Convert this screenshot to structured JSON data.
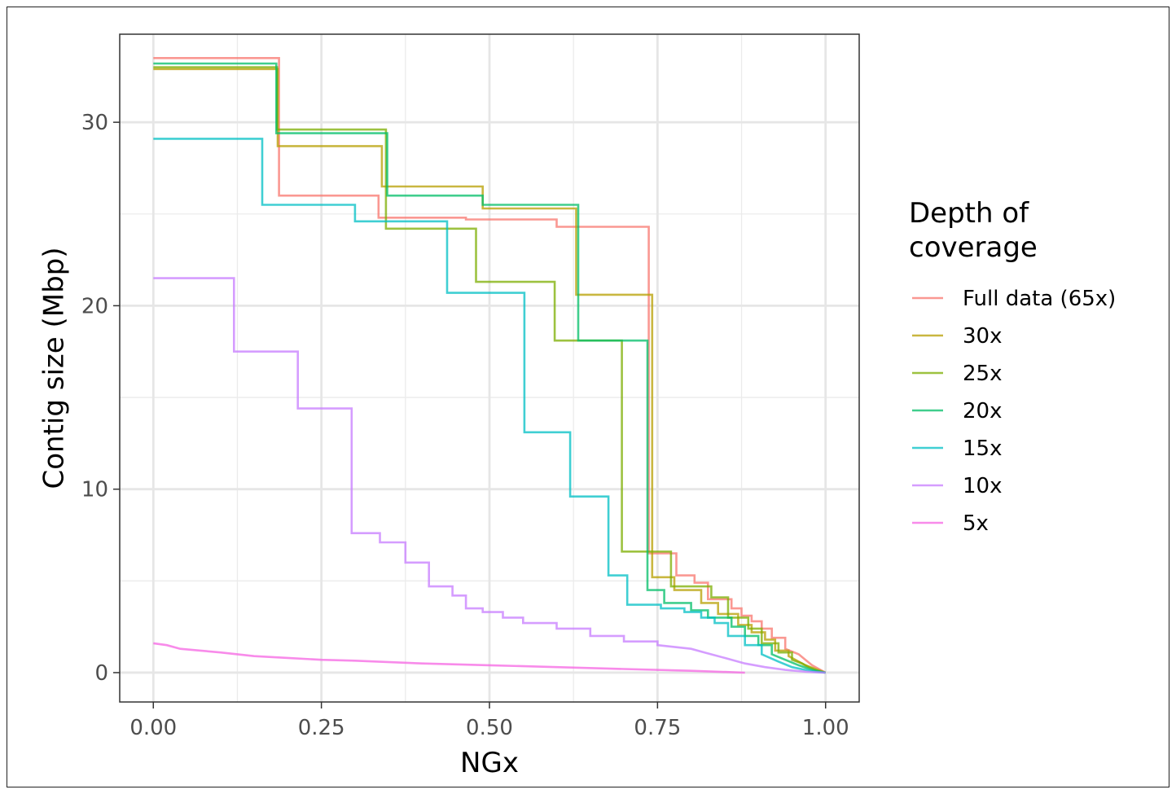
{
  "chart_data": {
    "type": "line",
    "step": true,
    "xlabel": "NGx",
    "ylabel": "Contig size (Mbp)",
    "xlim": [
      -0.05,
      1.05
    ],
    "ylim": [
      -1.6,
      34.8
    ],
    "x_ticks": [
      0.0,
      0.25,
      0.5,
      0.75,
      1.0
    ],
    "x_tick_labels": [
      "0.00",
      "0.25",
      "0.50",
      "0.75",
      "1.00"
    ],
    "y_ticks": [
      0,
      10,
      20,
      30
    ],
    "y_tick_labels": [
      "0",
      "10",
      "20",
      "30"
    ],
    "grid": true,
    "legend": {
      "title": "Depth of coverage",
      "title_lines": [
        "Depth of",
        "coverage"
      ],
      "position": "right"
    },
    "series": [
      {
        "name": "Full data (65x)",
        "color": "#F8766D",
        "x": [
          0,
          0.187,
          0.187,
          0.335,
          0.335,
          0.465,
          0.465,
          0.6,
          0.6,
          0.737,
          0.737,
          0.778,
          0.778,
          0.805,
          0.805,
          0.825,
          0.825,
          0.86,
          0.86,
          0.875,
          0.875,
          0.89,
          0.89,
          0.905,
          0.905,
          0.92,
          0.92,
          0.94,
          0.94,
          0.96,
          0.97,
          0.98,
          0.99,
          1.0
        ],
        "y": [
          33.5,
          33.5,
          26.0,
          26.0,
          24.8,
          24.8,
          24.7,
          24.7,
          24.3,
          24.3,
          6.5,
          6.5,
          5.3,
          5.3,
          4.9,
          4.9,
          4.0,
          4.0,
          3.5,
          3.5,
          3.1,
          3.1,
          2.8,
          2.8,
          2.4,
          2.4,
          1.9,
          1.9,
          1.3,
          1.0,
          0.7,
          0.4,
          0.2,
          0.0
        ]
      },
      {
        "name": "30x",
        "color": "#B79F00",
        "x": [
          0,
          0.185,
          0.185,
          0.34,
          0.34,
          0.49,
          0.49,
          0.629,
          0.629,
          0.742,
          0.742,
          0.775,
          0.775,
          0.815,
          0.815,
          0.84,
          0.84,
          0.87,
          0.87,
          0.89,
          0.89,
          0.91,
          0.91,
          0.925,
          0.925,
          0.945,
          0.945,
          0.96,
          0.97,
          0.985,
          1.0
        ],
        "y": [
          32.9,
          32.9,
          28.7,
          28.7,
          26.5,
          26.5,
          25.3,
          25.3,
          20.6,
          20.6,
          5.2,
          5.2,
          4.5,
          4.5,
          3.8,
          3.8,
          3.2,
          3.2,
          2.6,
          2.6,
          2.2,
          2.2,
          1.8,
          1.8,
          1.2,
          1.2,
          0.9,
          0.6,
          0.4,
          0.2,
          0.0
        ]
      },
      {
        "name": "25x",
        "color": "#7CAE00",
        "x": [
          0,
          0.184,
          0.184,
          0.346,
          0.346,
          0.48,
          0.48,
          0.597,
          0.597,
          0.697,
          0.697,
          0.77,
          0.77,
          0.83,
          0.83,
          0.855,
          0.855,
          0.885,
          0.885,
          0.905,
          0.905,
          0.93,
          0.93,
          0.95,
          0.95,
          0.965,
          0.975,
          0.988,
          1.0
        ],
        "y": [
          33.0,
          33.0,
          29.6,
          29.6,
          24.2,
          24.2,
          21.3,
          21.3,
          18.1,
          18.1,
          6.6,
          6.6,
          4.7,
          4.7,
          4.1,
          4.1,
          3.0,
          3.0,
          2.4,
          2.4,
          1.6,
          1.6,
          1.1,
          1.1,
          0.7,
          0.5,
          0.3,
          0.1,
          0.0
        ]
      },
      {
        "name": "20x",
        "color": "#00BE67",
        "x": [
          0,
          0.183,
          0.183,
          0.348,
          0.348,
          0.49,
          0.49,
          0.632,
          0.632,
          0.735,
          0.735,
          0.76,
          0.76,
          0.8,
          0.8,
          0.825,
          0.825,
          0.86,
          0.86,
          0.88,
          0.88,
          0.9,
          0.9,
          0.92,
          0.92,
          0.94,
          0.96,
          0.98,
          1.0
        ],
        "y": [
          33.2,
          33.2,
          29.4,
          29.4,
          26.0,
          26.0,
          25.5,
          25.5,
          18.1,
          18.1,
          4.5,
          4.5,
          3.8,
          3.8,
          3.4,
          3.4,
          3.0,
          3.0,
          2.5,
          2.5,
          2.0,
          2.0,
          1.5,
          1.5,
          1.0,
          0.7,
          0.4,
          0.15,
          0.0
        ]
      },
      {
        "name": "15x",
        "color": "#00BFC4",
        "x": [
          0,
          0.162,
          0.162,
          0.3,
          0.3,
          0.437,
          0.437,
          0.552,
          0.552,
          0.62,
          0.62,
          0.677,
          0.677,
          0.705,
          0.705,
          0.755,
          0.755,
          0.79,
          0.79,
          0.815,
          0.815,
          0.835,
          0.835,
          0.855,
          0.855,
          0.88,
          0.88,
          0.905,
          0.905,
          0.93,
          0.95,
          0.97,
          0.985,
          1.0
        ],
        "y": [
          29.1,
          29.1,
          25.5,
          25.5,
          24.6,
          24.6,
          20.7,
          20.7,
          13.1,
          13.1,
          9.6,
          9.6,
          5.3,
          5.3,
          3.7,
          3.7,
          3.5,
          3.5,
          3.3,
          3.3,
          3.0,
          3.0,
          2.7,
          2.7,
          2.0,
          2.0,
          1.5,
          1.5,
          1.0,
          0.6,
          0.3,
          0.15,
          0.05,
          0.0
        ]
      },
      {
        "name": "10x",
        "color": "#C77CFF",
        "x": [
          0,
          0.12,
          0.12,
          0.215,
          0.215,
          0.295,
          0.295,
          0.337,
          0.337,
          0.375,
          0.375,
          0.41,
          0.41,
          0.445,
          0.445,
          0.465,
          0.465,
          0.49,
          0.49,
          0.52,
          0.52,
          0.55,
          0.55,
          0.6,
          0.6,
          0.65,
          0.65,
          0.7,
          0.7,
          0.75,
          0.75,
          0.8,
          0.82,
          0.85,
          0.88,
          0.91,
          0.94,
          0.97,
          1.0
        ],
        "y": [
          21.5,
          21.5,
          17.5,
          17.5,
          14.4,
          14.4,
          7.6,
          7.6,
          7.1,
          7.1,
          6.0,
          6.0,
          4.7,
          4.7,
          4.2,
          4.2,
          3.5,
          3.5,
          3.3,
          3.3,
          3.0,
          3.0,
          2.7,
          2.7,
          2.4,
          2.4,
          2.0,
          2.0,
          1.7,
          1.7,
          1.5,
          1.3,
          1.1,
          0.8,
          0.5,
          0.3,
          0.15,
          0.05,
          0.0
        ]
      },
      {
        "name": "5x",
        "color": "#F564E3",
        "x": [
          0,
          0.02,
          0.04,
          0.07,
          0.1,
          0.15,
          0.2,
          0.25,
          0.3,
          0.4,
          0.5,
          0.6,
          0.7,
          0.8,
          0.88
        ],
        "y": [
          1.6,
          1.5,
          1.3,
          1.2,
          1.1,
          0.9,
          0.8,
          0.7,
          0.65,
          0.5,
          0.4,
          0.3,
          0.2,
          0.1,
          0.0
        ]
      }
    ]
  }
}
